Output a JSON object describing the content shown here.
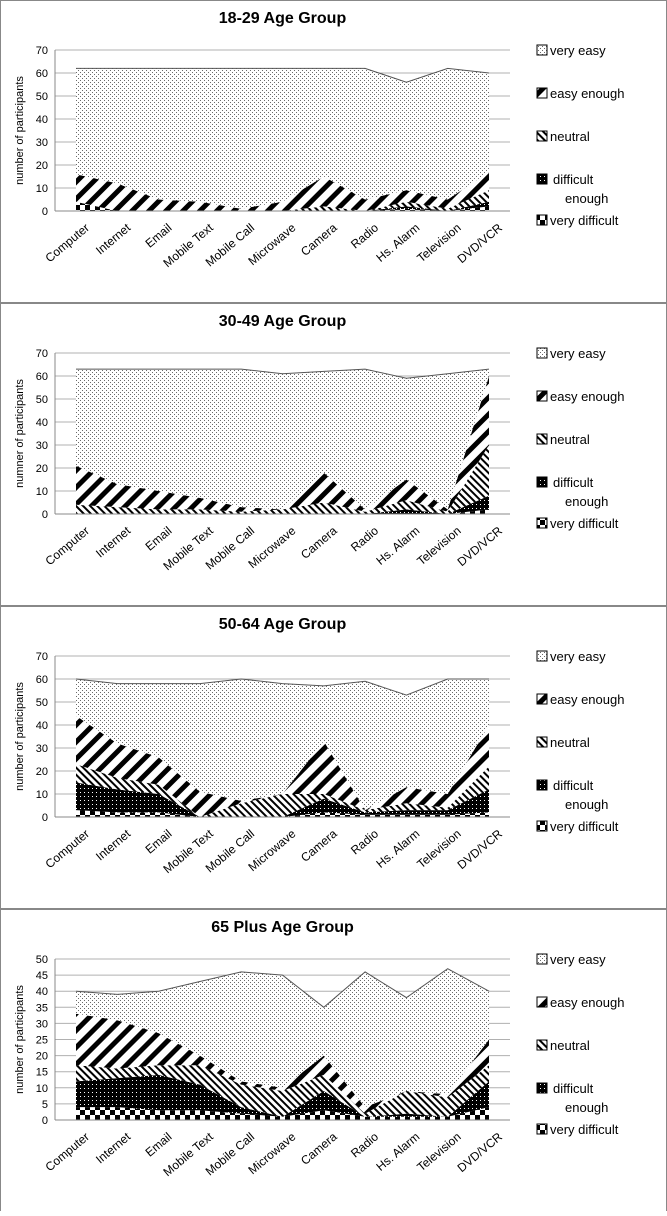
{
  "chart_data": [
    {
      "type": "area",
      "title": "18-29 Age Group",
      "ylabel": "number of participants",
      "xlabel": "",
      "ylim": [
        0,
        70
      ],
      "yticks": [
        0,
        10,
        20,
        30,
        40,
        50,
        60,
        70
      ],
      "legend_position": "right",
      "categories": [
        "Computer",
        "Internet",
        "Email",
        "Mobile Text",
        "Mobile Call",
        "Microwave",
        "Camera",
        "Radio",
        "Hs. Alarm",
        "Television",
        "DVD/VCR"
      ],
      "series": [
        {
          "name": "very difficult",
          "values": [
            4,
            0,
            0,
            0,
            0,
            0,
            0,
            0,
            1,
            0,
            2
          ]
        },
        {
          "name": "difficult enough",
          "values": [
            0,
            0,
            0,
            0,
            0,
            0,
            0,
            0,
            1,
            0,
            2
          ]
        },
        {
          "name": "neutral",
          "values": [
            0,
            0,
            0,
            0,
            0,
            0,
            2,
            0,
            2,
            1,
            5
          ]
        },
        {
          "name": "easy enough",
          "values": [
            12,
            12,
            5,
            4,
            1,
            4,
            13,
            5,
            5,
            4,
            8
          ]
        },
        {
          "name": "very easy",
          "values": [
            46,
            50,
            57,
            58,
            61,
            58,
            47,
            57,
            47,
            57,
            43
          ]
        }
      ]
    },
    {
      "type": "area",
      "title": "30-49 Age Group",
      "ylabel": "numner of participants",
      "xlabel": "",
      "ylim": [
        0,
        70
      ],
      "yticks": [
        0,
        10,
        20,
        30,
        40,
        50,
        60,
        70
      ],
      "legend_position": "right",
      "categories": [
        "Computer",
        "Internet",
        "Email",
        "Mobile Text",
        "Mobile Call",
        "Microwave",
        "Camera",
        "Radio",
        "Hs. Alarm",
        "Television",
        "DVD/VCR"
      ],
      "series": [
        {
          "name": "very difficult",
          "values": [
            0,
            0,
            0,
            0,
            0,
            0,
            0,
            0,
            0,
            0,
            2
          ]
        },
        {
          "name": "difficult enough",
          "values": [
            0,
            0,
            0,
            0,
            0,
            0,
            0,
            0,
            2,
            0,
            6
          ]
        },
        {
          "name": "neutral",
          "values": [
            4,
            3,
            2,
            2,
            1,
            2,
            5,
            1,
            4,
            1,
            22
          ]
        },
        {
          "name": "easy enough",
          "values": [
            17,
            10,
            8,
            5,
            2,
            0,
            13,
            1,
            9,
            1,
            30
          ]
        },
        {
          "name": "very easy",
          "values": [
            42,
            50,
            53,
            56,
            60,
            59,
            44,
            61,
            44,
            59,
            3
          ]
        }
      ]
    },
    {
      "type": "area",
      "title": "50-64 Age Group",
      "ylabel": "number of participants",
      "xlabel": "",
      "ylim": [
        0,
        70
      ],
      "yticks": [
        0,
        10,
        20,
        30,
        40,
        50,
        60,
        70
      ],
      "legend_position": "right",
      "categories": [
        "Computer",
        "Internet",
        "Email",
        "Mobile Text",
        "Mobile Call",
        "Microwave",
        "Camera",
        "Radio",
        "Hs. Alarm",
        "Television",
        "DVD/VCR"
      ],
      "series": [
        {
          "name": "very difficult",
          "values": [
            3,
            2,
            2,
            0,
            0,
            0,
            2,
            1,
            1,
            1,
            2
          ]
        },
        {
          "name": "difficult enough",
          "values": [
            12,
            10,
            8,
            0,
            0,
            0,
            6,
            1,
            2,
            2,
            10
          ]
        },
        {
          "name": "neutral",
          "values": [
            8,
            5,
            4,
            0,
            6,
            10,
            2,
            1,
            3,
            1,
            10
          ]
        },
        {
          "name": "easy enough",
          "values": [
            21,
            15,
            12,
            11,
            1,
            0,
            23,
            0,
            7,
            6,
            18
          ]
        },
        {
          "name": "very easy",
          "values": [
            16,
            26,
            32,
            47,
            53,
            48,
            24,
            56,
            40,
            50,
            20
          ]
        }
      ]
    },
    {
      "type": "area",
      "title": "65 Plus Age Group",
      "ylabel": "number of participants",
      "xlabel": "",
      "ylim": [
        0,
        50
      ],
      "yticks": [
        0,
        5,
        10,
        15,
        20,
        25,
        30,
        35,
        40,
        45,
        50
      ],
      "legend_position": "right",
      "categories": [
        "Computer",
        "Internet",
        "Email",
        "Mobile Text",
        "Mobile Call",
        "Microwave",
        "Camera",
        "Radio",
        "Hs. Alarm",
        "Television",
        "DVD/VCR"
      ],
      "series": [
        {
          "name": "very difficult",
          "values": [
            4,
            4,
            3,
            3,
            2,
            1,
            3,
            1,
            1,
            1,
            4
          ]
        },
        {
          "name": "difficult enough",
          "values": [
            8,
            9,
            11,
            8,
            2,
            0,
            6,
            0,
            1,
            0,
            8
          ]
        },
        {
          "name": "neutral",
          "values": [
            5,
            3,
            3,
            6,
            7,
            8,
            5,
            1,
            7,
            6,
            5
          ]
        },
        {
          "name": "easy enough",
          "values": [
            16,
            15,
            10,
            3,
            1,
            1,
            6,
            2,
            0,
            1,
            8
          ]
        },
        {
          "name": "very easy",
          "values": [
            7,
            8,
            13,
            23,
            34,
            35,
            15,
            42,
            29,
            39,
            15
          ]
        }
      ]
    }
  ]
}
